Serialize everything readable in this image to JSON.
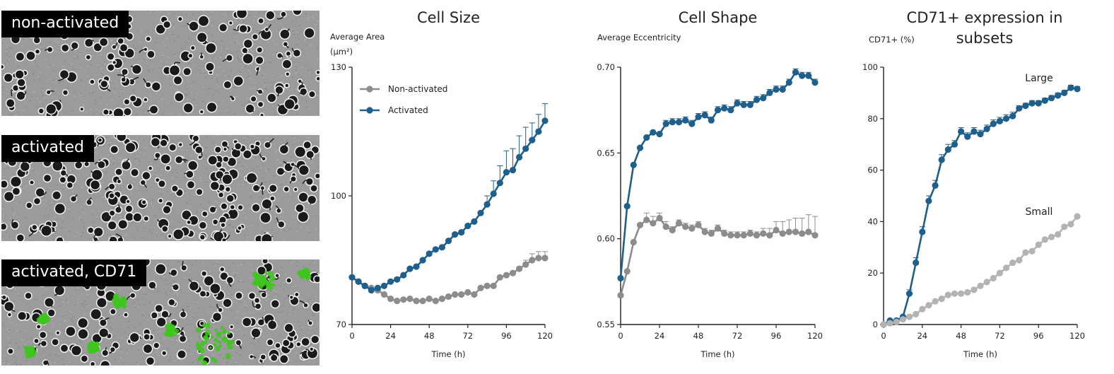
{
  "images": [
    {
      "label": "non-activated"
    },
    {
      "label": "activated"
    },
    {
      "label": "activated, CD71"
    }
  ],
  "colors": {
    "activated": "#1f5f8b",
    "non_activated": "#8c8c8c",
    "small": "#b3b3b3",
    "fluorescence": "#3ec51c",
    "axis": "#222222"
  },
  "chart_data": [
    {
      "type": "line",
      "title": "Cell Size",
      "ylabel": "Average Area (µm²)",
      "xlabel": "Time (h)",
      "xlim": [
        0,
        120
      ],
      "ylim": [
        70,
        130
      ],
      "xticks": [
        0,
        24,
        48,
        72,
        96,
        120
      ],
      "yticks": [
        70,
        100,
        130
      ],
      "legend": "top-left",
      "x": [
        0,
        4,
        8,
        12,
        16,
        20,
        24,
        28,
        32,
        36,
        40,
        44,
        48,
        52,
        56,
        60,
        64,
        68,
        72,
        76,
        80,
        84,
        88,
        92,
        96,
        100,
        104,
        108,
        112,
        116,
        120
      ],
      "series": [
        {
          "name": "Non-activated",
          "color_key": "non_activated",
          "values": [
            81,
            80,
            79,
            78.5,
            78,
            77,
            76,
            75.5,
            75.8,
            76,
            75.5,
            75.5,
            76,
            75.5,
            76,
            76.5,
            77,
            77,
            77.5,
            77,
            78.5,
            79,
            79,
            81,
            81.5,
            82,
            83,
            84,
            85,
            85.5,
            85.5
          ],
          "error": [
            0,
            0,
            0,
            0,
            0,
            0,
            0,
            0,
            0,
            0,
            0,
            0,
            0,
            0,
            0,
            0,
            0,
            0,
            0,
            0,
            0,
            0,
            0,
            0,
            0,
            0,
            0,
            1,
            1.5,
            1.5,
            1.5
          ]
        },
        {
          "name": "Activated",
          "color_key": "activated",
          "values": [
            81,
            80,
            79,
            78,
            78.5,
            79,
            80,
            80.5,
            81.5,
            83,
            83.5,
            85,
            86.5,
            87.5,
            88,
            89.5,
            91,
            91.5,
            93,
            94,
            96,
            98,
            100.5,
            103,
            105.5,
            106,
            109,
            111,
            113,
            115,
            117.5
          ],
          "error": [
            0,
            0,
            0,
            0,
            0,
            0,
            0,
            0,
            0,
            0,
            0,
            0,
            0,
            0,
            0,
            0,
            0,
            0,
            0,
            0,
            0,
            2,
            3,
            4,
            5,
            5,
            5,
            5,
            4,
            4,
            4
          ]
        }
      ]
    },
    {
      "type": "line",
      "title": "Cell Shape",
      "ylabel": "Average Eccentricity",
      "xlabel": "Time (h)",
      "xlim": [
        0,
        120
      ],
      "ylim": [
        0.55,
        0.7
      ],
      "xticks": [
        0,
        24,
        48,
        72,
        96,
        120
      ],
      "yticks": [
        0.55,
        0.6,
        0.65,
        0.7
      ],
      "ytick_labels": [
        "0.55",
        "0.60",
        "0.65",
        "0.70"
      ],
      "x": [
        0,
        4,
        8,
        12,
        16,
        20,
        24,
        28,
        32,
        36,
        40,
        44,
        48,
        52,
        56,
        60,
        64,
        68,
        72,
        76,
        80,
        84,
        88,
        92,
        96,
        100,
        104,
        108,
        112,
        116,
        120
      ],
      "series": [
        {
          "name": "Non-activated",
          "color_key": "non_activated",
          "values": [
            0.567,
            0.581,
            0.598,
            0.608,
            0.611,
            0.609,
            0.612,
            0.607,
            0.605,
            0.609,
            0.607,
            0.606,
            0.608,
            0.604,
            0.603,
            0.606,
            0.603,
            0.602,
            0.602,
            0.602,
            0.603,
            0.602,
            0.603,
            0.602,
            0.605,
            0.603,
            0.604,
            0.604,
            0.603,
            0.604,
            0.602
          ],
          "error": [
            0,
            0,
            0,
            0,
            0.004,
            0.004,
            0.003,
            0.003,
            0.002,
            0.002,
            0.002,
            0.002,
            0.002,
            0.002,
            0.002,
            0.002,
            0.002,
            0.002,
            0.002,
            0.002,
            0.002,
            0.002,
            0.003,
            0.004,
            0.005,
            0.007,
            0.007,
            0.008,
            0.009,
            0.01,
            0.011
          ]
        },
        {
          "name": "Activated",
          "color_key": "activated",
          "values": [
            0.577,
            0.619,
            0.643,
            0.653,
            0.659,
            0.662,
            0.661,
            0.667,
            0.668,
            0.668,
            0.669,
            0.667,
            0.671,
            0.672,
            0.669,
            0.675,
            0.676,
            0.675,
            0.679,
            0.678,
            0.678,
            0.681,
            0.682,
            0.685,
            0.687,
            0.687,
            0.691,
            0.697,
            0.695,
            0.695,
            0.691
          ],
          "error": [
            0,
            0,
            0,
            0,
            0,
            0,
            0,
            0.002,
            0.002,
            0.002,
            0.002,
            0.002,
            0.002,
            0.002,
            0.002,
            0.002,
            0.002,
            0.002,
            0.002,
            0.002,
            0.002,
            0.002,
            0.002,
            0.002,
            0.002,
            0.002,
            0.002,
            0.002,
            0.002,
            0.002,
            0.002
          ]
        }
      ]
    },
    {
      "type": "line",
      "title": "CD71+ expression in subsets",
      "title_lines": [
        "CD71+ expression in",
        "subsets"
      ],
      "ylabel": "CD71+ (%)",
      "xlabel": "Time (h)",
      "xlim": [
        0,
        120
      ],
      "ylim": [
        0,
        100
      ],
      "xticks": [
        0,
        24,
        48,
        72,
        96,
        120
      ],
      "yticks": [
        0,
        20,
        40,
        60,
        80,
        100
      ],
      "x": [
        0,
        4,
        8,
        12,
        16,
        20,
        24,
        28,
        32,
        36,
        40,
        44,
        48,
        52,
        56,
        60,
        64,
        68,
        72,
        76,
        80,
        84,
        88,
        92,
        96,
        100,
        104,
        108,
        112,
        116,
        120
      ],
      "series": [
        {
          "name": "Large",
          "color_key": "activated",
          "values": [
            0,
            1.5,
            1.5,
            3,
            12,
            24,
            36,
            48,
            54,
            64,
            68,
            70,
            75,
            73,
            75,
            74,
            76,
            78,
            79,
            80,
            81,
            84,
            85,
            86,
            86,
            87,
            88,
            89,
            90,
            92,
            91.5
          ],
          "error": [
            0,
            0,
            0,
            0,
            1.5,
            2,
            2,
            2,
            2,
            2,
            2,
            1.5,
            1.5,
            1.5,
            1.5,
            1.5,
            1.5,
            1.5,
            1.5,
            1.5,
            1.5,
            1,
            1,
            1,
            1,
            1,
            1,
            1,
            1,
            1,
            1
          ]
        },
        {
          "name": "Small",
          "color_key": "small",
          "values": [
            0,
            0.5,
            1,
            2,
            3,
            4,
            6,
            7.5,
            9,
            10,
            11.5,
            12,
            12,
            12.5,
            13.5,
            15,
            16.5,
            18,
            20,
            22,
            24,
            25,
            28,
            28.5,
            31,
            33,
            34,
            35,
            38,
            39,
            42
          ],
          "error": [
            0,
            0,
            0,
            0,
            0,
            0,
            0,
            0,
            0,
            0,
            0,
            0,
            0,
            0,
            0,
            0,
            0,
            0,
            0,
            0,
            0,
            0,
            0,
            0,
            0,
            0,
            0,
            0,
            0,
            0,
            0
          ]
        }
      ],
      "annotations": [
        "Large",
        "Small"
      ]
    }
  ]
}
